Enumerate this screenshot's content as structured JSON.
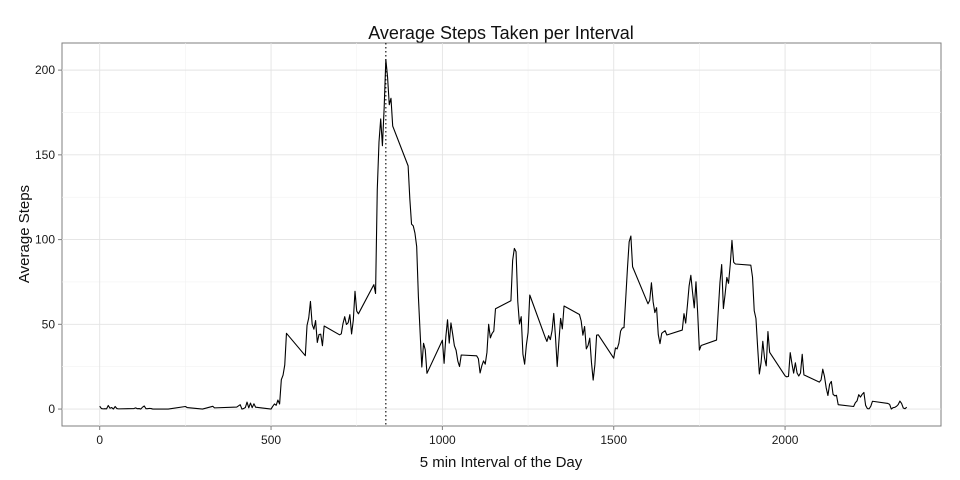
{
  "chart_data": {
    "type": "line",
    "title": "Average Steps Taken per Interval",
    "xlabel": "5 min Interval of the Day",
    "ylabel": "Average Steps",
    "xlim": [
      -110,
      2455
    ],
    "ylim": [
      -10,
      216
    ],
    "xticks": [
      0,
      500,
      1000,
      1500,
      2000
    ],
    "yticks": [
      0,
      50,
      100,
      150,
      200
    ],
    "x_tick_labels": [
      "0",
      "500",
      "1000",
      "1500",
      "2000"
    ],
    "y_tick_labels": [
      "0",
      "50",
      "100",
      "150",
      "200"
    ],
    "grid": true,
    "legend": "none",
    "reference_line": {
      "x": 835,
      "style": "dotted"
    },
    "series": [
      {
        "color": "#000000",
        "points": [
          [
            0,
            1.7
          ],
          [
            5,
            0.3
          ],
          [
            10,
            0.1
          ],
          [
            15,
            0.2
          ],
          [
            20,
            0.1
          ],
          [
            25,
            2.1
          ],
          [
            30,
            0.5
          ],
          [
            35,
            0.9
          ],
          [
            40,
            0
          ],
          [
            45,
            1.5
          ],
          [
            50,
            0.3
          ],
          [
            55,
            0.1
          ],
          [
            100,
            0.3
          ],
          [
            105,
            0.7
          ],
          [
            110,
            0.2
          ],
          [
            115,
            0.3
          ],
          [
            120,
            0
          ],
          [
            125,
            1.1
          ],
          [
            130,
            1.8
          ],
          [
            135,
            0.2
          ],
          [
            140,
            0.2
          ],
          [
            145,
            0.4
          ],
          [
            150,
            0.3
          ],
          [
            155,
            0
          ],
          [
            200,
            0
          ],
          [
            250,
            1.5
          ],
          [
            255,
            0.9
          ],
          [
            300,
            0
          ],
          [
            330,
            1.6
          ],
          [
            335,
            0.7
          ],
          [
            400,
            1.2
          ],
          [
            410,
            2.6
          ],
          [
            415,
            0
          ],
          [
            420,
            0.3
          ],
          [
            425,
            0.9
          ],
          [
            430,
            4.1
          ],
          [
            435,
            0.7
          ],
          [
            440,
            3.5
          ],
          [
            445,
            0.8
          ],
          [
            450,
            3.1
          ],
          [
            455,
            1.1
          ],
          [
            500,
            0
          ],
          [
            505,
            1.6
          ],
          [
            510,
            3.0
          ],
          [
            515,
            2.2
          ],
          [
            520,
            5.3
          ],
          [
            525,
            3.0
          ],
          [
            530,
            17.3
          ],
          [
            535,
            20.0
          ],
          [
            540,
            26.0
          ],
          [
            545,
            44.7
          ],
          [
            600,
            31.5
          ],
          [
            605,
            49.3
          ],
          [
            610,
            53.8
          ],
          [
            615,
            63.5
          ],
          [
            620,
            50.0
          ],
          [
            625,
            47.1
          ],
          [
            630,
            52.2
          ],
          [
            635,
            39.3
          ],
          [
            640,
            44.0
          ],
          [
            645,
            44.2
          ],
          [
            650,
            37.4
          ],
          [
            655,
            49.0
          ],
          [
            700,
            43.8
          ],
          [
            705,
            44.4
          ],
          [
            710,
            50.5
          ],
          [
            715,
            54.5
          ],
          [
            720,
            49.9
          ],
          [
            725,
            50.9
          ],
          [
            730,
            55.7
          ],
          [
            735,
            44.3
          ],
          [
            740,
            52.3
          ],
          [
            745,
            69.5
          ],
          [
            750,
            57.8
          ],
          [
            755,
            56.2
          ],
          [
            800,
            73.4
          ],
          [
            805,
            68.2
          ],
          [
            810,
            129.4
          ],
          [
            815,
            157.5
          ],
          [
            820,
            171.2
          ],
          [
            825,
            155.4
          ],
          [
            830,
            177.3
          ],
          [
            835,
            206.2
          ],
          [
            840,
            195.9
          ],
          [
            845,
            179.6
          ],
          [
            850,
            183.4
          ],
          [
            855,
            167.0
          ],
          [
            900,
            143.5
          ],
          [
            905,
            124.0
          ],
          [
            910,
            109.1
          ],
          [
            915,
            108.1
          ],
          [
            920,
            103.7
          ],
          [
            925,
            95.9
          ],
          [
            930,
            66.2
          ],
          [
            935,
            45.2
          ],
          [
            940,
            24.8
          ],
          [
            945,
            38.8
          ],
          [
            950,
            35.0
          ],
          [
            955,
            21.1
          ],
          [
            1000,
            40.6
          ],
          [
            1005,
            27.0
          ],
          [
            1010,
            42.4
          ],
          [
            1015,
            52.7
          ],
          [
            1020,
            38.9
          ],
          [
            1025,
            50.8
          ],
          [
            1030,
            44.3
          ],
          [
            1035,
            37.4
          ],
          [
            1040,
            34.7
          ],
          [
            1045,
            28.3
          ],
          [
            1050,
            25.1
          ],
          [
            1055,
            31.9
          ],
          [
            1100,
            31.4
          ],
          [
            1105,
            29.7
          ],
          [
            1110,
            21.3
          ],
          [
            1115,
            25.5
          ],
          [
            1120,
            28.4
          ],
          [
            1125,
            26.5
          ],
          [
            1130,
            33.4
          ],
          [
            1135,
            49.98
          ],
          [
            1140,
            42.0
          ],
          [
            1145,
            44.6
          ],
          [
            1150,
            46.0
          ],
          [
            1155,
            59.2
          ],
          [
            1200,
            63.9
          ],
          [
            1205,
            87.7
          ],
          [
            1210,
            94.8
          ],
          [
            1215,
            92.8
          ],
          [
            1220,
            63.4
          ],
          [
            1225,
            50.2
          ],
          [
            1230,
            54.5
          ],
          [
            1235,
            32.4
          ],
          [
            1240,
            26.5
          ],
          [
            1245,
            37.7
          ],
          [
            1250,
            45.1
          ],
          [
            1255,
            67.3
          ],
          [
            1300,
            42.3
          ],
          [
            1305,
            39.9
          ],
          [
            1310,
            43.3
          ],
          [
            1315,
            40.98
          ],
          [
            1320,
            46.2
          ],
          [
            1325,
            56.4
          ],
          [
            1330,
            42.8
          ],
          [
            1335,
            25.1
          ],
          [
            1340,
            39.97
          ],
          [
            1345,
            53.5
          ],
          [
            1350,
            47.3
          ],
          [
            1355,
            60.8
          ],
          [
            1400,
            55.8
          ],
          [
            1405,
            51.96
          ],
          [
            1410,
            43.6
          ],
          [
            1415,
            48.7
          ],
          [
            1420,
            35.5
          ],
          [
            1425,
            37.5
          ],
          [
            1430,
            41.8
          ],
          [
            1435,
            27.5
          ],
          [
            1440,
            17.1
          ],
          [
            1445,
            26.1
          ],
          [
            1450,
            43.6
          ],
          [
            1455,
            43.8
          ],
          [
            1500,
            30.0
          ],
          [
            1505,
            36.1
          ],
          [
            1510,
            35.5
          ],
          [
            1515,
            38.8
          ],
          [
            1520,
            45.96
          ],
          [
            1525,
            47.8
          ],
          [
            1530,
            48.1
          ],
          [
            1535,
            65.3
          ],
          [
            1540,
            82.9
          ],
          [
            1545,
            98.7
          ],
          [
            1550,
            102.1
          ],
          [
            1555,
            83.96
          ],
          [
            1600,
            62.1
          ],
          [
            1605,
            64.1
          ],
          [
            1610,
            74.5
          ],
          [
            1615,
            63.2
          ],
          [
            1620,
            56.9
          ],
          [
            1625,
            59.8
          ],
          [
            1630,
            43.9
          ],
          [
            1635,
            38.6
          ],
          [
            1640,
            44.7
          ],
          [
            1645,
            45.5
          ],
          [
            1650,
            46.2
          ],
          [
            1655,
            43.7
          ],
          [
            1700,
            46.6
          ],
          [
            1705,
            56.3
          ],
          [
            1710,
            50.7
          ],
          [
            1715,
            61.2
          ],
          [
            1720,
            72.7
          ],
          [
            1725,
            78.9
          ],
          [
            1730,
            68.9
          ],
          [
            1735,
            59.7
          ],
          [
            1740,
            75.1
          ],
          [
            1745,
            56.5
          ],
          [
            1750,
            34.8
          ],
          [
            1755,
            37.5
          ],
          [
            1800,
            40.7
          ],
          [
            1805,
            58.0
          ],
          [
            1810,
            74.7
          ],
          [
            1815,
            85.3
          ],
          [
            1820,
            59.3
          ],
          [
            1825,
            67.8
          ],
          [
            1830,
            77.7
          ],
          [
            1835,
            74.2
          ],
          [
            1840,
            85.3
          ],
          [
            1845,
            99.5
          ],
          [
            1850,
            86.6
          ],
          [
            1855,
            85.6
          ],
          [
            1900,
            84.9
          ],
          [
            1905,
            77.8
          ],
          [
            1910,
            58.0
          ],
          [
            1915,
            53.4
          ],
          [
            1920,
            36.3
          ],
          [
            1925,
            20.7
          ],
          [
            1930,
            27.4
          ],
          [
            1935,
            40.0
          ],
          [
            1940,
            30.2
          ],
          [
            1945,
            25.5
          ],
          [
            1950,
            45.7
          ],
          [
            1955,
            33.5
          ],
          [
            2000,
            19.6
          ],
          [
            2005,
            19.0
          ],
          [
            2010,
            19.3
          ],
          [
            2015,
            33.3
          ],
          [
            2020,
            26.8
          ],
          [
            2025,
            21.2
          ],
          [
            2030,
            27.3
          ],
          [
            2035,
            21.3
          ],
          [
            2040,
            19.5
          ],
          [
            2045,
            21.3
          ],
          [
            2050,
            32.3
          ],
          [
            2055,
            20.2
          ],
          [
            2100,
            15.9
          ],
          [
            2105,
            17.2
          ],
          [
            2110,
            23.5
          ],
          [
            2115,
            19.2
          ],
          [
            2120,
            12.5
          ],
          [
            2125,
            8.0
          ],
          [
            2130,
            14.7
          ],
          [
            2135,
            16.3
          ],
          [
            2140,
            8.7
          ],
          [
            2145,
            7.8
          ],
          [
            2150,
            8.1
          ],
          [
            2155,
            2.6
          ],
          [
            2200,
            1.5
          ],
          [
            2205,
            3.7
          ],
          [
            2210,
            4.8
          ],
          [
            2215,
            8.5
          ],
          [
            2220,
            7.1
          ],
          [
            2225,
            8.7
          ],
          [
            2230,
            9.8
          ],
          [
            2235,
            2.2
          ],
          [
            2240,
            0.3
          ],
          [
            2245,
            0.1
          ],
          [
            2250,
            1.6
          ],
          [
            2255,
            4.6
          ],
          [
            2300,
            3.3
          ],
          [
            2305,
            2.8
          ],
          [
            2310,
            0
          ],
          [
            2315,
            0.8
          ],
          [
            2320,
            1.0
          ],
          [
            2325,
            1.6
          ],
          [
            2330,
            2.6
          ],
          [
            2335,
            4.7
          ],
          [
            2340,
            3.3
          ],
          [
            2345,
            0.6
          ],
          [
            2350,
            0.2
          ],
          [
            2355,
            1.1
          ]
        ]
      }
    ]
  }
}
